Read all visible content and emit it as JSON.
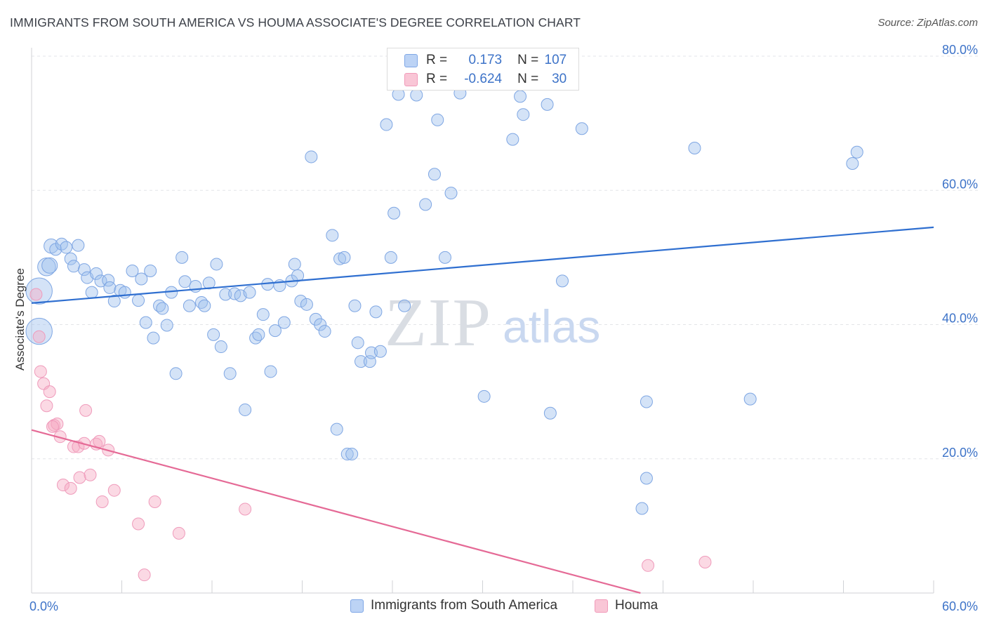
{
  "title": "IMMIGRANTS FROM SOUTH AMERICA VS HOUMA ASSOCIATE'S DEGREE CORRELATION CHART",
  "source": "Source: ZipAtlas.com",
  "watermark": {
    "zip": "ZIP",
    "atlas": "atlas"
  },
  "colors": {
    "blue": "#6f9fe6",
    "blue_line": "#2f6fd0",
    "pink": "#f08fb0",
    "pink_line": "#e56a96",
    "axis_text": "#3d73c8"
  },
  "stats": [
    {
      "r_label": "R =",
      "r": " 0.173",
      "n_label": "N =",
      "n": "107",
      "color": "blue"
    },
    {
      "r_label": "R =",
      "r": "-0.624",
      "n_label": "N =",
      "n": " 30",
      "color": "pink"
    }
  ],
  "legend": [
    {
      "label": "Immigrants from South America",
      "color": "blue"
    },
    {
      "label": "Houma",
      "color": "pink"
    }
  ],
  "chart_data": {
    "type": "scatter",
    "xlabel": "",
    "ylabel": "Associate's Degree",
    "xlim": [
      0,
      60
    ],
    "ylim": [
      0,
      80
    ],
    "x_tick_labels": [
      {
        "value": 0,
        "label": "0.0%"
      },
      {
        "value": 60,
        "label": "60.0%"
      }
    ],
    "y_tick_labels": [
      {
        "value": 20,
        "label": "20.0%"
      },
      {
        "value": 40,
        "label": "40.0%"
      },
      {
        "value": 60,
        "label": "60.0%"
      },
      {
        "value": 80,
        "label": "80.0%"
      }
    ],
    "x_minor_ticks": [
      0,
      6,
      12,
      18,
      24,
      30,
      36,
      42,
      48,
      54,
      60
    ],
    "series": [
      {
        "name": "Immigrants from South America",
        "color": "blue",
        "trend": {
          "x": [
            0,
            60
          ],
          "y": [
            43.2,
            54.5
          ]
        },
        "points": [
          {
            "x": 0.5,
            "y": 45.0,
            "s": 2.2
          },
          {
            "x": 0.5,
            "y": 39.0,
            "s": 2.2
          },
          {
            "x": 1.0,
            "y": 48.6,
            "s": 1.5
          },
          {
            "x": 1.2,
            "y": 48.8,
            "s": 1.3
          },
          {
            "x": 1.3,
            "y": 51.7,
            "s": 1.2
          },
          {
            "x": 1.6,
            "y": 51.2,
            "s": 1.0
          },
          {
            "x": 2.0,
            "y": 52.0,
            "s": 1.0
          },
          {
            "x": 2.3,
            "y": 51.5,
            "s": 1.0
          },
          {
            "x": 2.6,
            "y": 49.8,
            "s": 1.0
          },
          {
            "x": 2.8,
            "y": 48.7,
            "s": 1.0
          },
          {
            "x": 3.1,
            "y": 51.8,
            "s": 1.0
          },
          {
            "x": 3.5,
            "y": 48.2,
            "s": 1.0
          },
          {
            "x": 3.7,
            "y": 47.0,
            "s": 1.0
          },
          {
            "x": 4.0,
            "y": 44.8,
            "s": 1.0
          },
          {
            "x": 4.3,
            "y": 47.6,
            "s": 1.0
          },
          {
            "x": 4.6,
            "y": 46.5,
            "s": 1.0
          },
          {
            "x": 5.1,
            "y": 46.6,
            "s": 1.0
          },
          {
            "x": 5.2,
            "y": 45.5,
            "s": 1.0
          },
          {
            "x": 5.5,
            "y": 43.5,
            "s": 1.0
          },
          {
            "x": 5.9,
            "y": 45.1,
            "s": 1.0
          },
          {
            "x": 6.2,
            "y": 44.8,
            "s": 1.0
          },
          {
            "x": 6.7,
            "y": 48.0,
            "s": 1.0
          },
          {
            "x": 7.1,
            "y": 43.6,
            "s": 1.0
          },
          {
            "x": 7.3,
            "y": 46.8,
            "s": 1.0
          },
          {
            "x": 7.6,
            "y": 40.3,
            "s": 1.0
          },
          {
            "x": 7.9,
            "y": 48.0,
            "s": 1.0
          },
          {
            "x": 8.1,
            "y": 38.0,
            "s": 1.0
          },
          {
            "x": 8.5,
            "y": 42.8,
            "s": 1.0
          },
          {
            "x": 8.7,
            "y": 42.4,
            "s": 1.0
          },
          {
            "x": 9.0,
            "y": 39.9,
            "s": 1.0
          },
          {
            "x": 9.3,
            "y": 44.8,
            "s": 1.0
          },
          {
            "x": 9.6,
            "y": 32.7,
            "s": 1.0
          },
          {
            "x": 10.0,
            "y": 50.0,
            "s": 1.0
          },
          {
            "x": 10.2,
            "y": 46.4,
            "s": 1.0
          },
          {
            "x": 10.5,
            "y": 42.8,
            "s": 1.0
          },
          {
            "x": 10.9,
            "y": 45.7,
            "s": 1.0
          },
          {
            "x": 11.3,
            "y": 43.3,
            "s": 1.0
          },
          {
            "x": 11.5,
            "y": 42.8,
            "s": 1.0
          },
          {
            "x": 11.8,
            "y": 46.2,
            "s": 1.0
          },
          {
            "x": 12.1,
            "y": 38.5,
            "s": 1.0
          },
          {
            "x": 12.3,
            "y": 49.0,
            "s": 1.0
          },
          {
            "x": 12.6,
            "y": 36.7,
            "s": 1.0
          },
          {
            "x": 12.9,
            "y": 44.5,
            "s": 1.0
          },
          {
            "x": 13.2,
            "y": 32.7,
            "s": 1.0
          },
          {
            "x": 13.5,
            "y": 44.6,
            "s": 1.0
          },
          {
            "x": 13.9,
            "y": 44.3,
            "s": 1.0
          },
          {
            "x": 14.2,
            "y": 27.3,
            "s": 1.0
          },
          {
            "x": 14.5,
            "y": 44.8,
            "s": 1.0
          },
          {
            "x": 14.9,
            "y": 38.0,
            "s": 1.0
          },
          {
            "x": 15.1,
            "y": 38.5,
            "s": 1.0
          },
          {
            "x": 15.4,
            "y": 41.5,
            "s": 1.0
          },
          {
            "x": 15.7,
            "y": 46.0,
            "s": 1.0
          },
          {
            "x": 15.9,
            "y": 33.0,
            "s": 1.0
          },
          {
            "x": 16.2,
            "y": 39.1,
            "s": 1.0
          },
          {
            "x": 16.5,
            "y": 45.8,
            "s": 1.0
          },
          {
            "x": 16.8,
            "y": 40.3,
            "s": 1.0
          },
          {
            "x": 17.3,
            "y": 46.5,
            "s": 1.0
          },
          {
            "x": 17.5,
            "y": 49.0,
            "s": 1.0
          },
          {
            "x": 17.7,
            "y": 47.3,
            "s": 1.0
          },
          {
            "x": 17.9,
            "y": 43.5,
            "s": 1.0
          },
          {
            "x": 18.3,
            "y": 43.0,
            "s": 1.0
          },
          {
            "x": 18.6,
            "y": 65.0,
            "s": 1.0
          },
          {
            "x": 18.9,
            "y": 40.8,
            "s": 1.0
          },
          {
            "x": 19.2,
            "y": 40.0,
            "s": 1.0
          },
          {
            "x": 19.5,
            "y": 39.0,
            "s": 1.0
          },
          {
            "x": 20.0,
            "y": 53.3,
            "s": 1.0
          },
          {
            "x": 20.3,
            "y": 24.4,
            "s": 1.0
          },
          {
            "x": 20.5,
            "y": 49.8,
            "s": 1.0
          },
          {
            "x": 20.8,
            "y": 50.0,
            "s": 1.0
          },
          {
            "x": 21.0,
            "y": 20.7,
            "s": 1.0
          },
          {
            "x": 21.3,
            "y": 20.7,
            "s": 1.0
          },
          {
            "x": 21.5,
            "y": 42.8,
            "s": 1.0
          },
          {
            "x": 21.7,
            "y": 37.3,
            "s": 1.0
          },
          {
            "x": 21.9,
            "y": 34.5,
            "s": 1.0
          },
          {
            "x": 22.5,
            "y": 34.5,
            "s": 1.0
          },
          {
            "x": 22.6,
            "y": 35.8,
            "s": 1.0
          },
          {
            "x": 22.9,
            "y": 41.9,
            "s": 1.0
          },
          {
            "x": 23.2,
            "y": 36.0,
            "s": 1.0
          },
          {
            "x": 23.6,
            "y": 69.8,
            "s": 1.0
          },
          {
            "x": 23.9,
            "y": 50.0,
            "s": 1.0
          },
          {
            "x": 24.1,
            "y": 56.6,
            "s": 1.0
          },
          {
            "x": 24.4,
            "y": 74.3,
            "s": 1.0
          },
          {
            "x": 24.8,
            "y": 42.8,
            "s": 1.0
          },
          {
            "x": 25.4,
            "y": 75.8,
            "s": 1.0
          },
          {
            "x": 25.6,
            "y": 74.2,
            "s": 1.0
          },
          {
            "x": 26.2,
            "y": 57.9,
            "s": 1.0
          },
          {
            "x": 26.8,
            "y": 62.4,
            "s": 1.0
          },
          {
            "x": 27.0,
            "y": 70.5,
            "s": 1.0
          },
          {
            "x": 27.5,
            "y": 50.0,
            "s": 1.0
          },
          {
            "x": 27.9,
            "y": 59.6,
            "s": 1.0
          },
          {
            "x": 28.5,
            "y": 74.5,
            "s": 1.0
          },
          {
            "x": 29.2,
            "y": 78.0,
            "s": 1.0
          },
          {
            "x": 30.1,
            "y": 29.3,
            "s": 1.0
          },
          {
            "x": 31.8,
            "y": 77.6,
            "s": 1.0
          },
          {
            "x": 32.0,
            "y": 67.6,
            "s": 1.0
          },
          {
            "x": 32.5,
            "y": 74.0,
            "s": 1.0
          },
          {
            "x": 32.7,
            "y": 71.3,
            "s": 1.0
          },
          {
            "x": 34.3,
            "y": 72.8,
            "s": 1.0
          },
          {
            "x": 34.5,
            "y": 26.8,
            "s": 1.0
          },
          {
            "x": 35.3,
            "y": 46.5,
            "s": 1.0
          },
          {
            "x": 36.6,
            "y": 69.2,
            "s": 1.0
          },
          {
            "x": 40.6,
            "y": 12.6,
            "s": 1.0
          },
          {
            "x": 40.9,
            "y": 28.5,
            "s": 1.0
          },
          {
            "x": 40.9,
            "y": 17.1,
            "s": 1.0
          },
          {
            "x": 44.1,
            "y": 66.3,
            "s": 1.0
          },
          {
            "x": 47.8,
            "y": 28.9,
            "s": 1.0
          },
          {
            "x": 54.6,
            "y": 64.0,
            "s": 1.0
          },
          {
            "x": 54.9,
            "y": 65.7,
            "s": 1.0
          }
        ]
      },
      {
        "name": "Houma",
        "color": "pink",
        "trend": {
          "x": [
            0,
            40.5
          ],
          "y": [
            24.3,
            0
          ]
        },
        "points": [
          {
            "x": 0.3,
            "y": 44.5,
            "s": 1.0
          },
          {
            "x": 0.5,
            "y": 38.2,
            "s": 1.0
          },
          {
            "x": 0.6,
            "y": 33.0,
            "s": 1.0
          },
          {
            "x": 0.8,
            "y": 31.2,
            "s": 1.0
          },
          {
            "x": 1.0,
            "y": 27.9,
            "s": 1.0
          },
          {
            "x": 1.2,
            "y": 30.0,
            "s": 1.0
          },
          {
            "x": 1.5,
            "y": 25.0,
            "s": 1.0
          },
          {
            "x": 1.7,
            "y": 25.2,
            "s": 1.0
          },
          {
            "x": 1.9,
            "y": 23.3,
            "s": 1.0
          },
          {
            "x": 2.1,
            "y": 16.1,
            "s": 1.0
          },
          {
            "x": 2.6,
            "y": 15.6,
            "s": 1.0
          },
          {
            "x": 2.8,
            "y": 21.8,
            "s": 1.0
          },
          {
            "x": 3.1,
            "y": 21.8,
            "s": 1.0
          },
          {
            "x": 3.2,
            "y": 17.2,
            "s": 1.0
          },
          {
            "x": 3.5,
            "y": 22.3,
            "s": 1.0
          },
          {
            "x": 3.6,
            "y": 27.2,
            "s": 1.0
          },
          {
            "x": 3.9,
            "y": 17.6,
            "s": 1.0
          },
          {
            "x": 4.3,
            "y": 22.2,
            "s": 1.0
          },
          {
            "x": 4.5,
            "y": 22.6,
            "s": 1.0
          },
          {
            "x": 4.7,
            "y": 13.6,
            "s": 1.0
          },
          {
            "x": 5.1,
            "y": 21.3,
            "s": 1.0
          },
          {
            "x": 5.5,
            "y": 15.3,
            "s": 1.0
          },
          {
            "x": 7.1,
            "y": 10.3,
            "s": 1.0
          },
          {
            "x": 7.5,
            "y": 2.7,
            "s": 1.0
          },
          {
            "x": 8.2,
            "y": 13.6,
            "s": 1.0
          },
          {
            "x": 9.8,
            "y": 8.9,
            "s": 1.0
          },
          {
            "x": 14.2,
            "y": 12.5,
            "s": 1.0
          },
          {
            "x": 41.0,
            "y": 4.1,
            "s": 1.0
          },
          {
            "x": 44.8,
            "y": 4.6,
            "s": 1.0
          },
          {
            "x": 1.4,
            "y": 24.8,
            "s": 1.0
          }
        ]
      }
    ]
  }
}
